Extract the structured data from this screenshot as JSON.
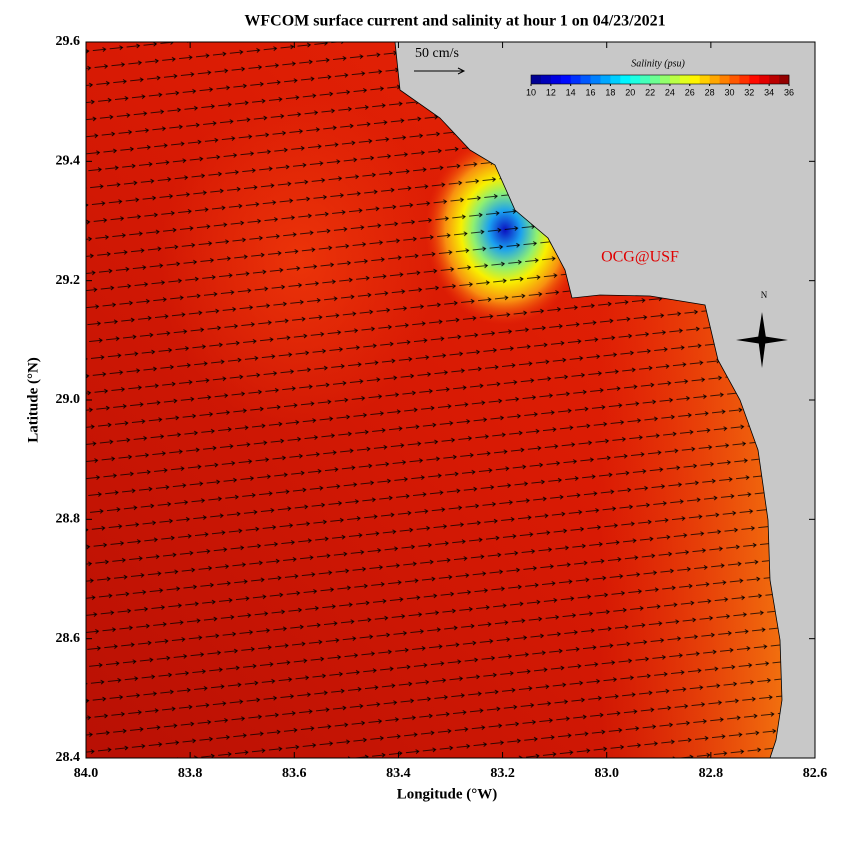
{
  "title": "WFCOM surface current and salinity at hour 1 on 04/23/2021",
  "scale_label": "50 cm/s",
  "watermark": "OCG@USF",
  "north": "N",
  "colorbar": {
    "title": "Salinity (psu)",
    "range": [
      10,
      36
    ],
    "ticks": [
      10,
      12,
      14,
      16,
      18,
      20,
      22,
      24,
      26,
      28,
      30,
      32,
      34,
      36
    ]
  },
  "x_axis": {
    "label": "Longitude (°W)",
    "range": [
      84,
      82.6
    ],
    "ticks": [
      {
        "value": 84,
        "label": "84.0"
      },
      83.8,
      83.6,
      83.4,
      83.2,
      {
        "value": 83,
        "label": "83.0"
      },
      82.8,
      82.6
    ]
  },
  "y_axis": {
    "label": "Latitude (°N)",
    "range": [
      28.4,
      29.6
    ],
    "ticks": [
      28.4,
      28.6,
      28.8,
      {
        "value": 29,
        "label": "29.0"
      },
      29.2,
      29.4,
      29.6
    ]
  }
}
